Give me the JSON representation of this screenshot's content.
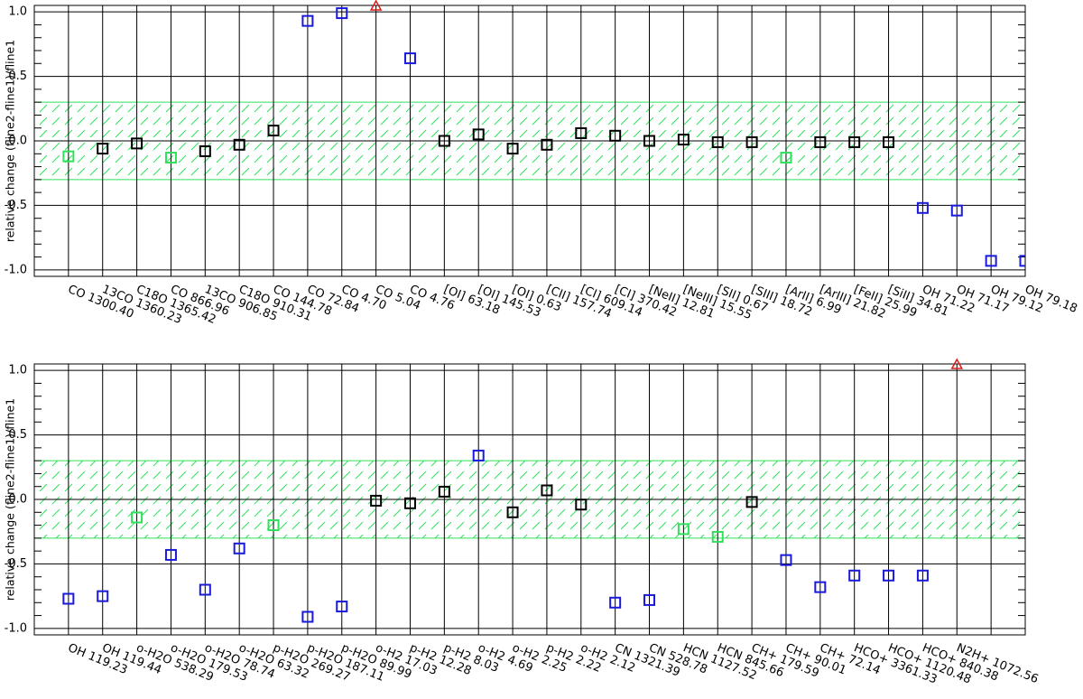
{
  "chart_data": [
    {
      "type": "scatter",
      "ylabel": "relative change  (fline2-fline1)/fline1",
      "categories": [
        "CO 1300.40",
        "13CO 1360.23",
        "C18O 1365.42",
        "CO 866.96",
        "13CO 906.85",
        "C18O 910.31",
        "CO 144.78",
        "CO 72.84",
        "CO 4.70",
        "CO 5.04",
        "CO 4.76",
        "[OI] 63.18",
        "[OI] 145.53",
        "[OI] 0.63",
        "[CII] 157.74",
        "[CI] 609.14",
        "[CI] 370.42",
        "[NeII] 12.81",
        "[NeIII] 15.55",
        "[SII] 0.67",
        "[SIII] 18.72",
        "[ArII] 6.99",
        "[ArIII] 21.82",
        "[FeII] 25.99",
        "[SiII] 34.81",
        "OH 71.22",
        "OH 71.17",
        "OH 79.12",
        "OH 79.18"
      ],
      "series": [
        {
          "color": "#000000",
          "marker": "square",
          "values": [
            null,
            -0.06,
            -0.02,
            null,
            -0.08,
            -0.03,
            0.08,
            null,
            null,
            null,
            null,
            0,
            0.05,
            -0.06,
            -0.03,
            0.06,
            0.04,
            0,
            0.01,
            -0.01,
            -0.01,
            null,
            -0.01,
            -0.01,
            -0.01,
            null,
            null,
            null,
            null
          ]
        },
        {
          "color": "#1a1adc",
          "marker": "square",
          "values": [
            null,
            null,
            null,
            null,
            null,
            null,
            null,
            0.93,
            0.99,
            null,
            0.64,
            null,
            null,
            null,
            null,
            null,
            null,
            null,
            null,
            null,
            null,
            null,
            null,
            null,
            null,
            -0.52,
            -0.54,
            -0.93,
            -0.93
          ]
        },
        {
          "color": "#2ee05a",
          "marker": "square",
          "values": [
            -0.12,
            null,
            null,
            -0.13,
            null,
            null,
            null,
            null,
            null,
            null,
            null,
            null,
            null,
            null,
            null,
            null,
            null,
            null,
            null,
            null,
            null,
            -0.13,
            null,
            null,
            null,
            null,
            null,
            null,
            null
          ]
        },
        {
          "color": "#e01a1a",
          "marker": "triangle",
          "values": [
            null,
            null,
            null,
            null,
            null,
            null,
            null,
            null,
            null,
            1.05,
            null,
            null,
            null,
            null,
            null,
            null,
            null,
            null,
            null,
            null,
            null,
            null,
            null,
            null,
            null,
            null,
            null,
            null,
            null
          ]
        }
      ],
      "ylim": [
        -1.05,
        1.05
      ],
      "yticks": [
        {
          "value": -1,
          "label": "-1.0"
        },
        -0.5,
        {
          "value": 0,
          "label": "0.0"
        },
        0.5,
        {
          "value": 1,
          "label": "1.0"
        }
      ],
      "yminorticks": [
        -0.9,
        -0.8,
        -0.7,
        -0.6,
        -0.4,
        -0.3,
        -0.2,
        -0.1,
        0.1,
        0.2,
        0.3,
        0.4,
        0.6,
        0.7,
        0.8,
        0.9
      ],
      "band_range": [
        -0.3,
        0.3
      ],
      "band_color": "#2ee05a",
      "grid": true
    },
    {
      "type": "scatter",
      "ylabel": "relative change  (fline2-fline1)/fline1",
      "categories": [
        "OH 119.23",
        "OH 119.44",
        "o-H2O 538.29",
        "o-H2O 179.53",
        "o-H2O 78.74",
        "o-H2O 63.32",
        "p-H2O 269.27",
        "p-H2O 187.11",
        "p-H2O 89.99",
        "o-H2 17.03",
        "p-H2 12.28",
        "p-H2 8.03",
        "o-H2 4.69",
        "o-H2 2.25",
        "p-H2 2.22",
        "o-H2 2.12",
        "CN 1321.39",
        "CN 528.78",
        "HCN 1127.52",
        "HCN 845.66",
        "CH+ 179.59",
        "CH+ 90.01",
        "CH+ 72.14",
        "HCO+ 3361.33",
        "HCO+ 1120.48",
        "HCO+ 840.38",
        "N2H+ 1072.56"
      ],
      "series": [
        {
          "color": "#000000",
          "marker": "square",
          "values": [
            null,
            null,
            null,
            null,
            null,
            null,
            null,
            null,
            null,
            -0.01,
            -0.03,
            0.06,
            null,
            -0.1,
            0.07,
            -0.04,
            null,
            null,
            null,
            null,
            -0.02,
            null,
            null,
            null,
            null,
            null,
            null
          ]
        },
        {
          "color": "#1a1adc",
          "marker": "square",
          "values": [
            -0.77,
            -0.75,
            null,
            -0.43,
            -0.7,
            -0.38,
            null,
            -0.91,
            -0.83,
            null,
            null,
            null,
            0.34,
            null,
            null,
            null,
            -0.8,
            -0.78,
            null,
            null,
            null,
            -0.47,
            -0.68,
            -0.59,
            -0.59,
            -0.59,
            null
          ]
        },
        {
          "color": "#2ee05a",
          "marker": "square",
          "values": [
            null,
            null,
            -0.14,
            null,
            null,
            null,
            -0.2,
            null,
            null,
            null,
            null,
            null,
            null,
            null,
            null,
            null,
            null,
            null,
            -0.23,
            -0.29,
            null,
            null,
            null,
            null,
            null,
            null,
            null
          ]
        },
        {
          "color": "#e01a1a",
          "marker": "triangle",
          "values": [
            null,
            null,
            null,
            null,
            null,
            null,
            null,
            null,
            null,
            null,
            null,
            null,
            null,
            null,
            null,
            null,
            null,
            null,
            null,
            null,
            null,
            null,
            null,
            null,
            null,
            null,
            1.05
          ]
        }
      ],
      "ylim": [
        -1.05,
        1.05
      ],
      "yticks": [
        {
          "value": -1,
          "label": "-1.0"
        },
        -0.5,
        {
          "value": 0,
          "label": "0.0"
        },
        0.5,
        {
          "value": 1,
          "label": "1.0"
        }
      ],
      "yminorticks": [
        -0.9,
        -0.8,
        -0.7,
        -0.6,
        -0.4,
        -0.3,
        -0.2,
        -0.1,
        0.1,
        0.2,
        0.3,
        0.4,
        0.6,
        0.7,
        0.8,
        0.9
      ],
      "band_range": [
        -0.3,
        0.3
      ],
      "band_color": "#2ee05a",
      "grid": true
    }
  ]
}
